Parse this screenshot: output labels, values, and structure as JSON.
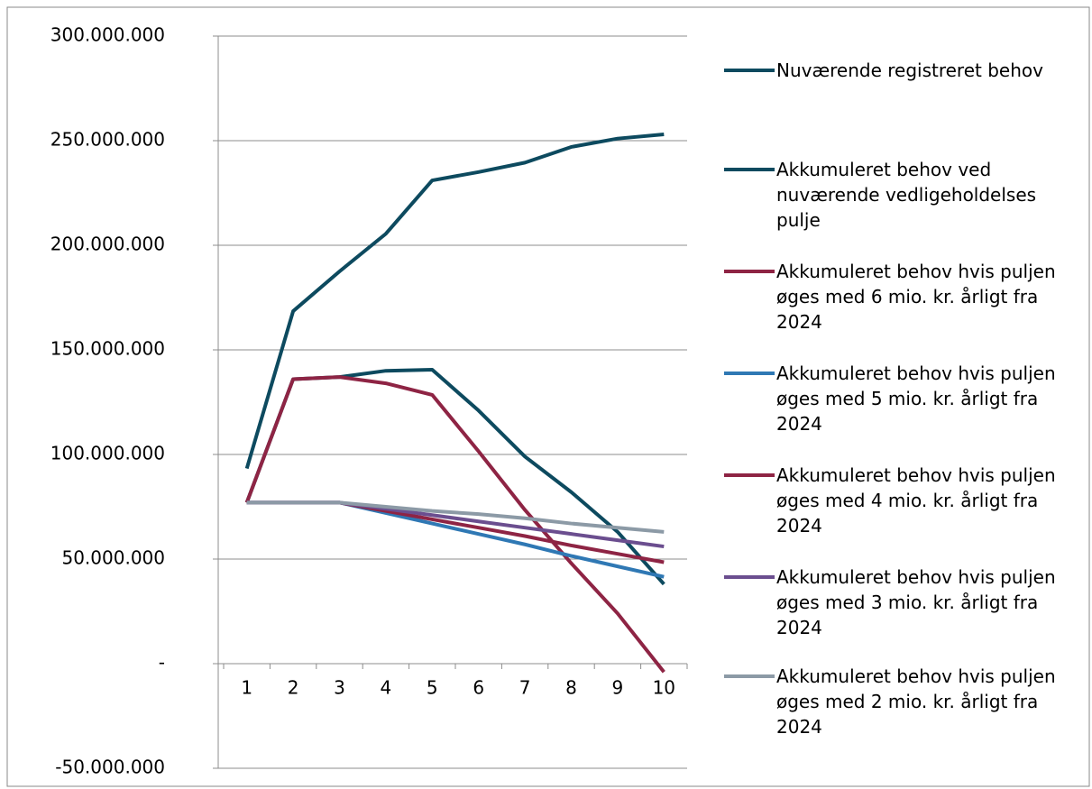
{
  "chart_data": {
    "type": "line",
    "categories": [
      "1",
      "2",
      "3",
      "4",
      "5",
      "6",
      "7",
      "8",
      "9",
      "10"
    ],
    "series": [
      {
        "name": "Nuværende registreret behov",
        "color": "#0d4a5f",
        "values": [
          93300000,
          168500000,
          187500000,
          205500000,
          231000000,
          235000000,
          239500000,
          247000000,
          251000000,
          253000000
        ]
      },
      {
        "name": "Akkumuleret behov ved nuværende vedligeholdelses pulje",
        "color": "#0d4a5f",
        "values": [
          77000000,
          136000000,
          137000000,
          140000000,
          140500000,
          121000000,
          99000000,
          82000000,
          63000000,
          38000000
        ]
      },
      {
        "name": "Akkumuleret behov hvis puljen øges med 6 mio. kr. årligt fra 2024",
        "color": "#8e2444",
        "values": [
          77000000,
          136000000,
          137000000,
          134000000,
          128500000,
          101500000,
          73500000,
          48000000,
          24000000,
          -4000000
        ]
      },
      {
        "name": "Akkumuleret behov hvis puljen øges med 5 mio. kr. årligt fra 2024",
        "color": "#2f78b4",
        "values": [
          77000000,
          77000000,
          77000000,
          72000000,
          67000000,
          62000000,
          57000000,
          51500000,
          46500000,
          41500000
        ]
      },
      {
        "name": "Akkumuleret behov hvis puljen øges med 4 mio. kr. årligt fra 2024",
        "color": "#8e2444",
        "values": [
          77000000,
          77000000,
          77000000,
          73000000,
          69000000,
          65000000,
          61000000,
          56500000,
          52500000,
          48500000
        ]
      },
      {
        "name": "Akkumuleret behov hvis puljen øges med 3 mio. kr. årligt fra 2024",
        "color": "#6b4e8f",
        "values": [
          77000000,
          77000000,
          77000000,
          74000000,
          71000000,
          68000000,
          65000000,
          62000000,
          59000000,
          56000000
        ]
      },
      {
        "name": "Akkumuleret behov hvis puljen øges med 2 mio. kr. årligt fra 2024",
        "color": "#8c9aa6",
        "values": [
          77000000,
          77000000,
          77000000,
          75000000,
          73000000,
          71500000,
          69500000,
          67000000,
          65000000,
          63000000
        ]
      }
    ],
    "ylim": [
      -50000000,
      300000000
    ],
    "yticks": [
      {
        "value": -50000000,
        "label": "-50.000.000"
      },
      {
        "value": 0,
        "label": "-"
      },
      {
        "value": 50000000,
        "label": "50.000.000"
      },
      {
        "value": 100000000,
        "label": "100.000.000"
      },
      {
        "value": 150000000,
        "label": "150.000.000"
      },
      {
        "value": 200000000,
        "label": "200.000.000"
      },
      {
        "value": 250000000,
        "label": "250.000.000"
      },
      {
        "value": 300000000,
        "label": "300.000.000"
      }
    ],
    "grid": true,
    "legend": "right"
  }
}
